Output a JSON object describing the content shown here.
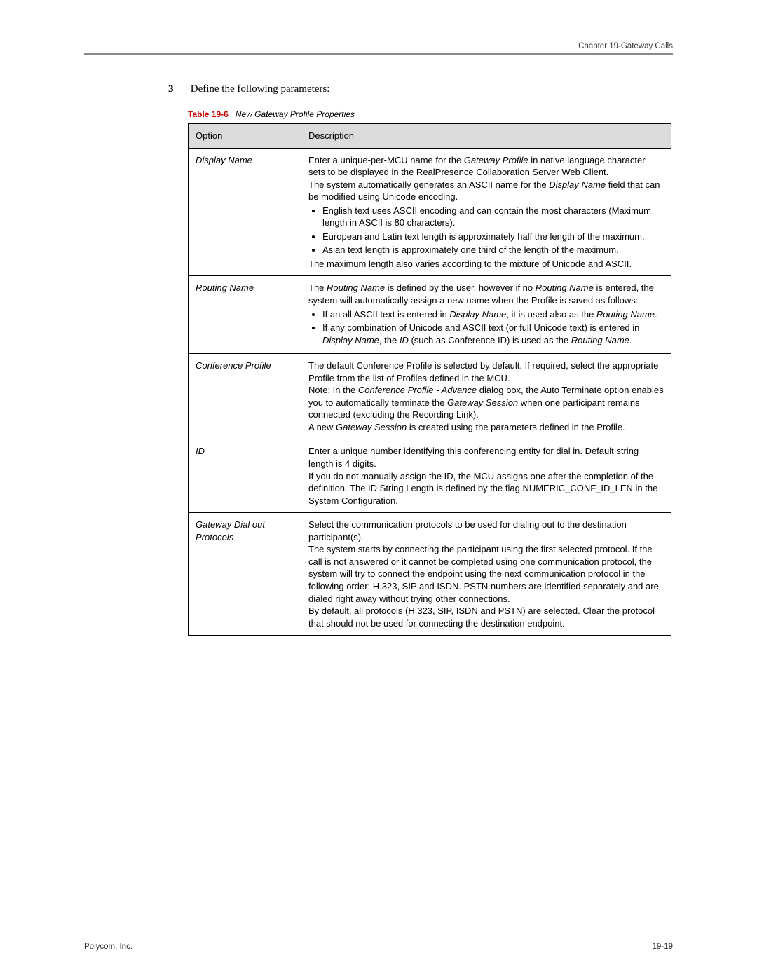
{
  "header": {
    "chapter": "Chapter 19-Gateway Calls"
  },
  "step": {
    "number": "3",
    "text": "Define the following parameters:"
  },
  "caption": {
    "label": "Table 19-6",
    "text": "New Gateway Profile Properties"
  },
  "table": {
    "head_option": "Option",
    "head_description": "Description",
    "rows": {
      "display_name": {
        "option": "Display Name",
        "p1a": "Enter a unique-per-MCU name for the ",
        "p1b": "Gateway Profile",
        "p1c": " in native language character sets to be displayed in the RealPresence Collaboration Server Web Client.",
        "p2a": "The system automatically generates an ASCII name for the ",
        "p2b": "Display Name",
        "p2c": " field that can be modified using Unicode encoding.",
        "b1": "English text uses ASCII encoding and can contain the most characters (Maximum length in ASCII is 80 characters).",
        "b2": "European and Latin text length is approximately half the length of the maximum.",
        "b3": "Asian text length is approximately one third of the length of the maximum.",
        "p3": "The maximum length also varies according to the mixture of Unicode and ASCII."
      },
      "routing_name": {
        "option": "Routing Name",
        "p1a": "The ",
        "p1b": "Routing Name",
        "p1c": " is defined by the user, however if no ",
        "p1d": "Routing Name",
        "p1e": " is entered, the system will automatically assign a new name when the Profile is saved as follows:",
        "b1a": "If an all ASCII text is entered in ",
        "b1b": "Display Name",
        "b1c": ", it is used also as the ",
        "b1d": "Routing Name",
        "b1e": ".",
        "b2a": "If any combination of Unicode and ASCII text (or full Unicode text) is entered in ",
        "b2b": "Display Name",
        "b2c": ", the ",
        "b2d": "ID",
        "b2e": " (such as Conference ID) is used as the ",
        "b2f": "Routing Name",
        "b2g": "."
      },
      "conference_profile": {
        "option": "Conference Profile",
        "p1": "The default Conference Profile is selected by default. If required, select the appropriate Profile from the list of Profiles defined in the MCU.",
        "p2a": "Note: In the ",
        "p2b": "Conference Profile - Advance",
        "p2c": " dialog box, the Auto Terminate option enables you to automatically terminate the ",
        "p2d": "Gateway Session",
        "p2e": " when one participant remains connected (excluding the Recording Link).",
        "p3a": "A new ",
        "p3b": "Gateway Session",
        "p3c": " is created using the parameters defined in the Profile."
      },
      "id": {
        "option": "ID",
        "p1": "Enter a unique number identifying this conferencing entity for dial in. Default string length is 4 digits.",
        "p2": "If you do not manually assign the ID, the MCU assigns one after the completion of the definition. The ID String Length is defined by the flag NUMERIC_CONF_ID_LEN in the System Configuration."
      },
      "protocols": {
        "option": "Gateway Dial out Protocols",
        "p1": "Select the communication protocols to be used for dialing out to the destination participant(s).",
        "p2": "The system starts by connecting the participant using the first selected protocol. If the call is not answered or it cannot be completed using one communication protocol, the system will try to connect the endpoint using the next communication protocol in the following order: H.323, SIP and ISDN. PSTN numbers are identified separately and are dialed right away without trying other connections.",
        "p3": "By default, all protocols (H.323, SIP, ISDN and PSTN) are selected. Clear the protocol that should not be used for connecting the destination endpoint."
      }
    }
  },
  "footer": {
    "company": "Polycom, Inc.",
    "page_no": "19-19"
  }
}
